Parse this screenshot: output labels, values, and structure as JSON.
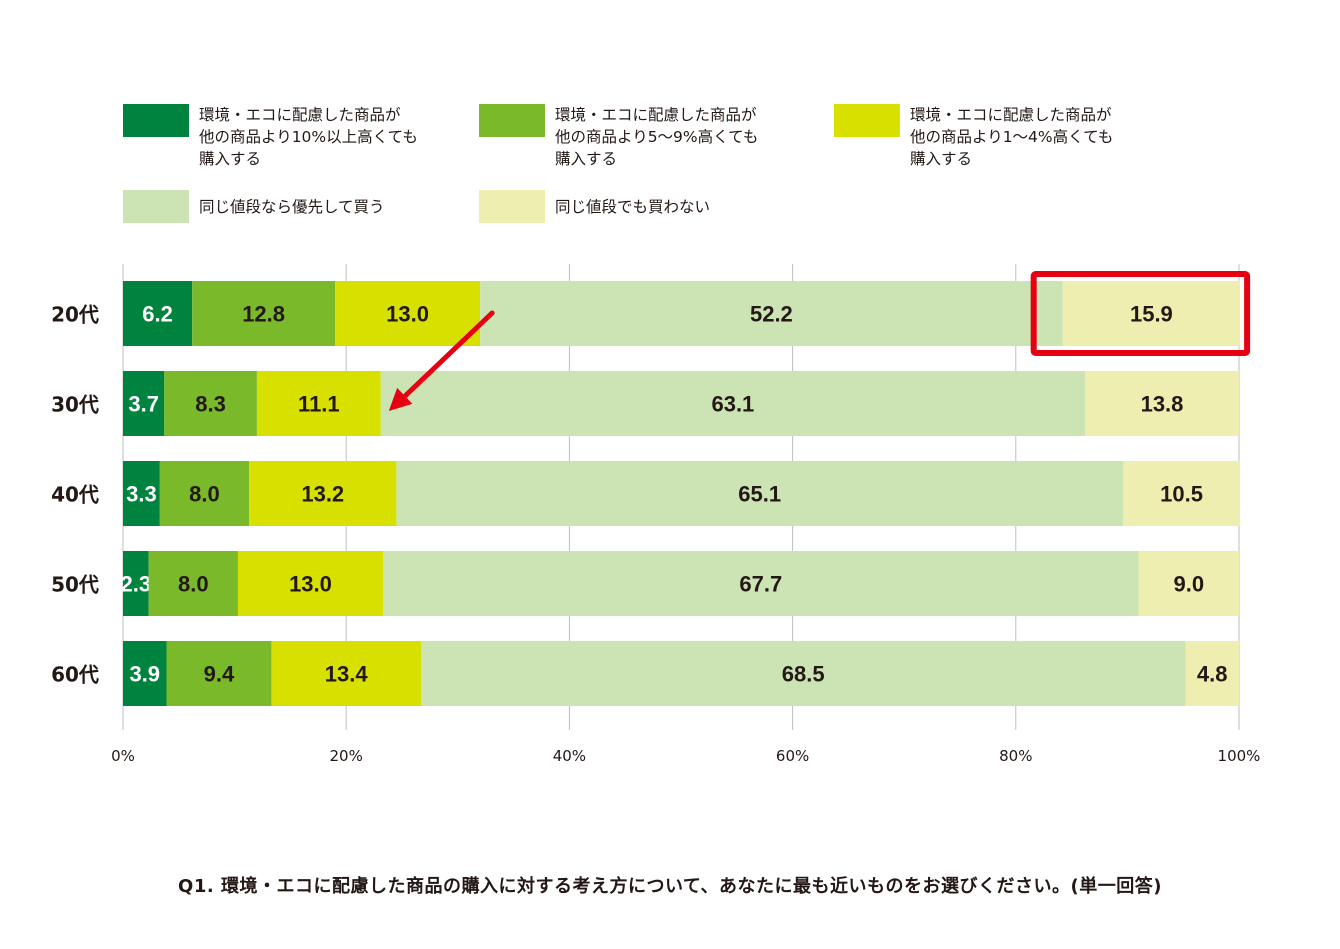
{
  "legend": {
    "items": [
      {
        "label": "環境・エコに配慮した商品が\n他の商品より10%以上高くても\n購入する",
        "color": "#00833e"
      },
      {
        "label": "環境・エコに配慮した商品が\n他の商品より5〜9%高くても\n購入する",
        "color": "#7ab929"
      },
      {
        "label": "環境・エコに配慮した商品が\n他の商品より1〜4%高くても\n購入する",
        "color": "#d8e000"
      },
      {
        "label": "同じ値段なら優先して買う",
        "color": "#cce3b3"
      },
      {
        "label": "同じ値段でも買わない",
        "color": "#eeeeb0"
      }
    ]
  },
  "chart_data": {
    "type": "bar",
    "orientation": "horizontal",
    "stacked": true,
    "categories": [
      "20代",
      "30代",
      "40代",
      "50代",
      "60代"
    ],
    "series": [
      {
        "name": "環境・エコに配慮した商品が他の商品より10%以上高くても購入する",
        "values": [
          6.2,
          3.7,
          3.3,
          2.3,
          3.9
        ],
        "color": "#00833e",
        "label_color": "#ffffff"
      },
      {
        "name": "環境・エコに配慮した商品が他の商品より5〜9%高くても購入する",
        "values": [
          12.8,
          8.3,
          8.0,
          8.0,
          9.4
        ],
        "color": "#7ab929",
        "label_color": "#231815"
      },
      {
        "name": "環境・エコに配慮した商品が他の商品より1〜4%高くても購入する",
        "values": [
          13.0,
          11.1,
          13.2,
          13.0,
          13.4
        ],
        "color": "#d8e000",
        "label_color": "#231815"
      },
      {
        "name": "同じ値段なら優先して買う",
        "values": [
          52.2,
          63.1,
          65.1,
          67.7,
          68.5
        ],
        "color": "#cce3b3",
        "label_color": "#231815"
      },
      {
        "name": "同じ値段でも買わない",
        "values": [
          15.9,
          13.8,
          10.5,
          9.0,
          4.8
        ],
        "color": "#eeeeb0",
        "label_color": "#231815"
      }
    ],
    "x_ticks": [
      "0%",
      "20%",
      "40%",
      "60%",
      "80%",
      "100%"
    ],
    "xlim": [
      0,
      100
    ],
    "grid": true,
    "highlight": {
      "category": "20代",
      "series_index": 4,
      "color": "#e60012"
    },
    "arrow": {
      "color": "#e60012",
      "from": "20代 環境・エコに配慮した商品が他の商品より1〜4%高くても購入する",
      "to": "30代 環境・エコに配慮した商品が他の商品より1〜4%高くても購入する"
    }
  },
  "caption": "Q1. 環境・エコに配慮した商品の購入に対する考え方について、あなたに最も近いものをお選びください。(単一回答)"
}
